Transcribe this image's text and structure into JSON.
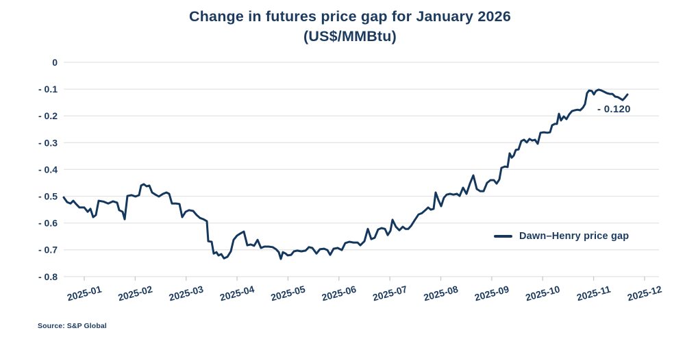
{
  "title": {
    "line1": "Change in futures price gap for January 2026",
    "line2": "(US$/MMBtu)"
  },
  "legend": {
    "label": "Dawn–Henry price gap"
  },
  "annotation": {
    "label": "- 0.120"
  },
  "source": {
    "text": "Source: S&P Global"
  },
  "colors": {
    "text": "#1b3a5e",
    "line": "#14375e",
    "grid": "#e4e4e4",
    "tick": "#c9c9c9",
    "background": "#ffffff"
  },
  "chart_data": {
    "type": "line",
    "title": "Change in futures price gap for January 2026",
    "subtitle": "(US$/MMBtu)",
    "xlabel": "",
    "ylabel": "US$/MMBtu",
    "ylim": [
      -0.8,
      0
    ],
    "grid": "horizontal",
    "legend_position": "right-middle",
    "end_annotation": "- 0.120",
    "y_ticks": [
      {
        "value": 0,
        "label": "0"
      },
      {
        "value": -0.1,
        "label": "- 0.1"
      },
      {
        "value": -0.2,
        "label": "- 0.2"
      },
      {
        "value": -0.3,
        "label": "- 0.3"
      },
      {
        "value": -0.4,
        "label": "- 0.4"
      },
      {
        "value": -0.5,
        "label": "- 0.5"
      },
      {
        "value": -0.6,
        "label": "- 0.6"
      },
      {
        "value": -0.7,
        "label": "- 0.7"
      },
      {
        "value": -0.8,
        "label": "- 0.8"
      }
    ],
    "x_tick_labels": [
      "2025-01",
      "2025-02",
      "2025-03",
      "2025-04",
      "2025-05",
      "2025-06",
      "2025-07",
      "2025-08",
      "2025-09",
      "2025-10",
      "2025-11",
      "2025-12"
    ],
    "series": [
      {
        "name": "Dawn–Henry price gap",
        "points": [
          [
            93,
            -0.504
          ],
          [
            98,
            -0.522
          ],
          [
            103,
            -0.527
          ],
          [
            107,
            -0.517
          ],
          [
            111,
            -0.529
          ],
          [
            116,
            -0.542
          ],
          [
            123,
            -0.542
          ],
          [
            128,
            -0.558
          ],
          [
            132,
            -0.547
          ],
          [
            136,
            -0.578
          ],
          [
            140,
            -0.57
          ],
          [
            144,
            -0.517
          ],
          [
            151,
            -0.52
          ],
          [
            158,
            -0.527
          ],
          [
            165,
            -0.519
          ],
          [
            171,
            -0.524
          ],
          [
            174,
            -0.552
          ],
          [
            179,
            -0.558
          ],
          [
            182,
            -0.586
          ],
          [
            186,
            -0.499
          ],
          [
            192,
            -0.496
          ],
          [
            198,
            -0.501
          ],
          [
            203,
            -0.496
          ],
          [
            206,
            -0.46
          ],
          [
            210,
            -0.455
          ],
          [
            214,
            -0.463
          ],
          [
            218,
            -0.46
          ],
          [
            222,
            -0.486
          ],
          [
            227,
            -0.494
          ],
          [
            232,
            -0.501
          ],
          [
            238,
            -0.491
          ],
          [
            243,
            -0.486
          ],
          [
            247,
            -0.491
          ],
          [
            251,
            -0.527
          ],
          [
            257,
            -0.527
          ],
          [
            262,
            -0.529
          ],
          [
            266,
            -0.578
          ],
          [
            271,
            -0.558
          ],
          [
            276,
            -0.552
          ],
          [
            282,
            -0.555
          ],
          [
            287,
            -0.57
          ],
          [
            292,
            -0.581
          ],
          [
            297,
            -0.586
          ],
          [
            302,
            -0.593
          ],
          [
            304,
            -0.668
          ],
          [
            309,
            -0.67
          ],
          [
            312,
            -0.714
          ],
          [
            316,
            -0.709
          ],
          [
            319,
            -0.721
          ],
          [
            323,
            -0.716
          ],
          [
            327,
            -0.732
          ],
          [
            332,
            -0.726
          ],
          [
            337,
            -0.706
          ],
          [
            341,
            -0.663
          ],
          [
            346,
            -0.647
          ],
          [
            351,
            -0.639
          ],
          [
            356,
            -0.632
          ],
          [
            361,
            -0.683
          ],
          [
            366,
            -0.68
          ],
          [
            371,
            -0.685
          ],
          [
            376,
            -0.663
          ],
          [
            381,
            -0.693
          ],
          [
            386,
            -0.688
          ],
          [
            392,
            -0.688
          ],
          [
            398,
            -0.69
          ],
          [
            403,
            -0.698
          ],
          [
            407,
            -0.709
          ],
          [
            410,
            -0.734
          ],
          [
            413,
            -0.709
          ],
          [
            417,
            -0.714
          ],
          [
            420,
            -0.721
          ],
          [
            425,
            -0.719
          ],
          [
            429,
            -0.706
          ],
          [
            434,
            -0.703
          ],
          [
            440,
            -0.706
          ],
          [
            446,
            -0.703
          ],
          [
            451,
            -0.69
          ],
          [
            456,
            -0.693
          ],
          [
            462,
            -0.714
          ],
          [
            467,
            -0.698
          ],
          [
            473,
            -0.696
          ],
          [
            478,
            -0.701
          ],
          [
            482,
            -0.719
          ],
          [
            487,
            -0.696
          ],
          [
            493,
            -0.693
          ],
          [
            499,
            -0.701
          ],
          [
            504,
            -0.675
          ],
          [
            510,
            -0.67
          ],
          [
            516,
            -0.673
          ],
          [
            522,
            -0.673
          ],
          [
            526,
            -0.683
          ],
          [
            532,
            -0.668
          ],
          [
            537,
            -0.622
          ],
          [
            542,
            -0.66
          ],
          [
            547,
            -0.655
          ],
          [
            552,
            -0.624
          ],
          [
            557,
            -0.619
          ],
          [
            562,
            -0.622
          ],
          [
            566,
            -0.645
          ],
          [
            570,
            -0.629
          ],
          [
            573,
            -0.588
          ],
          [
            578,
            -0.614
          ],
          [
            583,
            -0.627
          ],
          [
            588,
            -0.614
          ],
          [
            592,
            -0.622
          ],
          [
            596,
            -0.622
          ],
          [
            600,
            -0.611
          ],
          [
            605,
            -0.591
          ],
          [
            611,
            -0.568
          ],
          [
            616,
            -0.563
          ],
          [
            621,
            -0.552
          ],
          [
            625,
            -0.542
          ],
          [
            629,
            -0.55
          ],
          [
            633,
            -0.547
          ],
          [
            636,
            -0.486
          ],
          [
            640,
            -0.514
          ],
          [
            644,
            -0.537
          ],
          [
            648,
            -0.506
          ],
          [
            652,
            -0.494
          ],
          [
            657,
            -0.491
          ],
          [
            662,
            -0.494
          ],
          [
            667,
            -0.491
          ],
          [
            671,
            -0.499
          ],
          [
            676,
            -0.468
          ],
          [
            681,
            -0.491
          ],
          [
            686,
            -0.453
          ],
          [
            691,
            -0.422
          ],
          [
            696,
            -0.473
          ],
          [
            701,
            -0.481
          ],
          [
            706,
            -0.481
          ],
          [
            711,
            -0.45
          ],
          [
            716,
            -0.44
          ],
          [
            721,
            -0.44
          ],
          [
            725,
            -0.453
          ],
          [
            729,
            -0.437
          ],
          [
            732,
            -0.394
          ],
          [
            737,
            -0.389
          ],
          [
            741,
            -0.391
          ],
          [
            744,
            -0.34
          ],
          [
            747,
            -0.356
          ],
          [
            750,
            -0.348
          ],
          [
            753,
            -0.327
          ],
          [
            757,
            -0.325
          ],
          [
            761,
            -0.294
          ],
          [
            765,
            -0.289
          ],
          [
            769,
            -0.299
          ],
          [
            773,
            -0.286
          ],
          [
            777,
            -0.292
          ],
          [
            781,
            -0.289
          ],
          [
            785,
            -0.304
          ],
          [
            789,
            -0.263
          ],
          [
            794,
            -0.261
          ],
          [
            799,
            -0.263
          ],
          [
            803,
            -0.261
          ],
          [
            806,
            -0.235
          ],
          [
            810,
            -0.23
          ],
          [
            813,
            -0.23
          ],
          [
            816,
            -0.192
          ],
          [
            819,
            -0.217
          ],
          [
            823,
            -0.202
          ],
          [
            827,
            -0.212
          ],
          [
            831,
            -0.194
          ],
          [
            835,
            -0.182
          ],
          [
            839,
            -0.179
          ],
          [
            843,
            -0.177
          ],
          [
            847,
            -0.179
          ],
          [
            851,
            -0.169
          ],
          [
            854,
            -0.156
          ],
          [
            857,
            -0.115
          ],
          [
            860,
            -0.105
          ],
          [
            864,
            -0.107
          ],
          [
            867,
            -0.12
          ],
          [
            870,
            -0.107
          ],
          [
            874,
            -0.102
          ],
          [
            878,
            -0.105
          ],
          [
            882,
            -0.11
          ],
          [
            886,
            -0.115
          ],
          [
            890,
            -0.118
          ],
          [
            894,
            -0.118
          ],
          [
            898,
            -0.128
          ],
          [
            902,
            -0.13
          ],
          [
            906,
            -0.136
          ],
          [
            909,
            -0.141
          ],
          [
            912,
            -0.133
          ],
          [
            916,
            -0.12
          ]
        ]
      }
    ]
  }
}
